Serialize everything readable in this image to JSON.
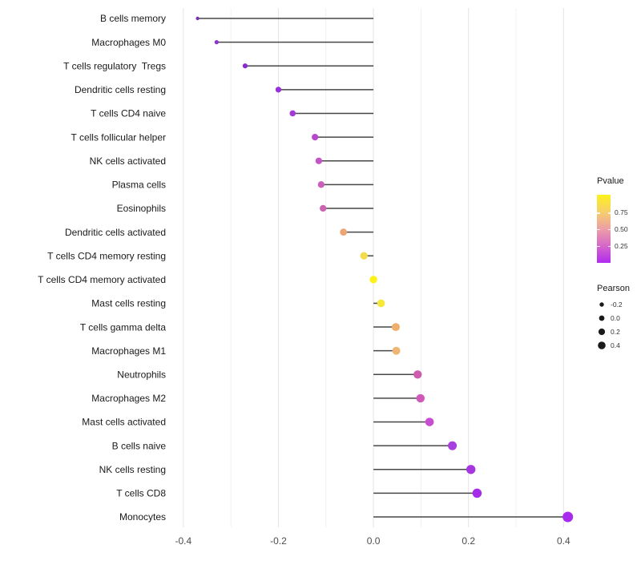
{
  "colors": {
    "background": "#ffffff",
    "stem": "#474747",
    "grid_major": "#e4e4e4",
    "grid_minor": "#f0f0f0",
    "axis_tick_text": "#4d4d4d",
    "category_text": "#1a1a1a",
    "legend_key_dot": "#1a1a1a"
  },
  "chart_data": {
    "type": "scatter",
    "variant": "lollipop",
    "title": "",
    "xlabel": "",
    "ylabel": "",
    "grid": true,
    "legend_position": "right",
    "xlim": [
      -0.425,
      0.45
    ],
    "x_ticks": [
      {
        "value": -0.4,
        "label": "-0.4"
      },
      {
        "value": -0.2,
        "label": "-0.2"
      },
      {
        "value": 0.0,
        "label": "0.0"
      },
      {
        "value": 0.2,
        "label": "0.2"
      },
      {
        "value": 0.4,
        "label": "0.4"
      }
    ],
    "x_minor_ticks": [
      -0.3,
      -0.1,
      0.1,
      0.3
    ],
    "rows": [
      {
        "label": "B cells memory",
        "pearson": -0.37,
        "color": "#7433b2"
      },
      {
        "label": "Macrophages M0",
        "pearson": -0.33,
        "color": "#8c35ce"
      },
      {
        "label": "T cells regulatory  Tregs",
        "pearson": -0.27,
        "color": "#8a2bd2"
      },
      {
        "label": "Dendritic cells resting",
        "pearson": -0.2,
        "color": "#9a30dc"
      },
      {
        "label": "T cells CD4 naive",
        "pearson": -0.17,
        "color": "#a23ad8"
      },
      {
        "label": "T cells follicular helper",
        "pearson": -0.123,
        "color": "#b847ce"
      },
      {
        "label": "NK cells activated",
        "pearson": -0.115,
        "color": "#c355c4"
      },
      {
        "label": "Plasma cells",
        "pearson": -0.11,
        "color": "#c95ebb"
      },
      {
        "label": "Eosinophils",
        "pearson": -0.106,
        "color": "#cc64b2"
      },
      {
        "label": "Dendritic cells activated",
        "pearson": -0.063,
        "color": "#eda573"
      },
      {
        "label": "T cells CD4 memory resting",
        "pearson": -0.02,
        "color": "#f2dc4e"
      },
      {
        "label": "T cells CD4 memory activated",
        "pearson": 0.0,
        "color": "#fcf217"
      },
      {
        "label": "Mast cells resting",
        "pearson": 0.016,
        "color": "#f6e83a"
      },
      {
        "label": "T cells gamma delta",
        "pearson": 0.047,
        "color": "#efaf6b"
      },
      {
        "label": "Macrophages M1",
        "pearson": 0.048,
        "color": "#efb573"
      },
      {
        "label": "Neutrophils",
        "pearson": 0.093,
        "color": "#ce5cae"
      },
      {
        "label": "Macrophages M2",
        "pearson": 0.099,
        "color": "#cf58b8"
      },
      {
        "label": "Mast cells activated",
        "pearson": 0.118,
        "color": "#c74ed2"
      },
      {
        "label": "B cells naive",
        "pearson": 0.166,
        "color": "#a83fe0"
      },
      {
        "label": "NK cells resting",
        "pearson": 0.205,
        "color": "#a636e0"
      },
      {
        "label": "T cells CD8",
        "pearson": 0.218,
        "color": "#a52be8"
      },
      {
        "label": "Monocytes",
        "pearson": 0.409,
        "color": "#a82aee"
      }
    ],
    "legend": {
      "pvalue": {
        "title": "Pvalue",
        "range": [
          0,
          1
        ],
        "ticks": [
          "0.75",
          "0.50",
          "0.25"
        ],
        "gradient_top_to_bottom": [
          "#fcf21d",
          "#f6cf6b",
          "#ec9fa5",
          "#d667c9",
          "#b02bf0"
        ]
      },
      "pearson": {
        "title": "Pearson",
        "items": [
          {
            "label": "-0.2",
            "value": -0.2
          },
          {
            "label": "0.0",
            "value": 0.0
          },
          {
            "label": "0.2",
            "value": 0.2
          },
          {
            "label": "0.4",
            "value": 0.4
          }
        ]
      }
    }
  }
}
